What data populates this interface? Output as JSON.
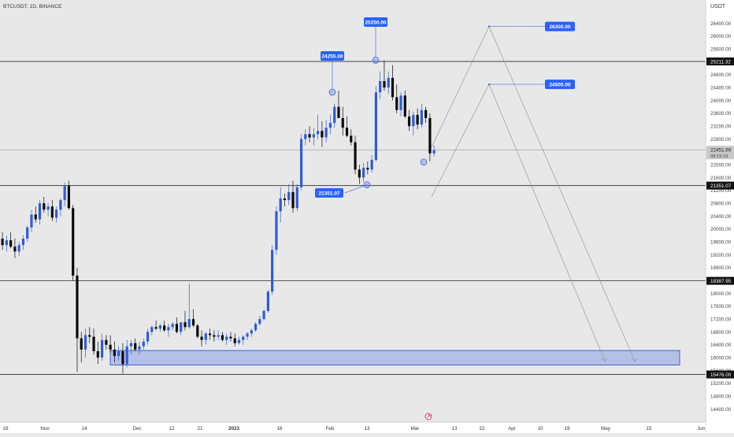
{
  "header": {
    "symbol_line": "BTCUSDT, 1D, BINANCE"
  },
  "axis": {
    "currency": "USDT"
  },
  "colors": {
    "background": "#e8e8e8",
    "axis_background": "#ffffff",
    "bull": "#2f5bd8",
    "bear": "#0a0a0a",
    "label_bg": "#2962ff",
    "line": "#2a2a2a",
    "zone_fill": "#a9b8e6",
    "zone_stroke": "#3f63cf",
    "projection": "#9a9a9a",
    "marker": "#4a6fe0"
  },
  "chart_data": {
    "type": "candlestick",
    "title": "BTCUSDT, 1D, BINANCE",
    "y_unit": "USDT",
    "ylim": [
      14000,
      27000
    ],
    "y_ticks": [
      14400,
      14800,
      15200,
      15600,
      16000,
      16400,
      16800,
      17200,
      17600,
      18000,
      18400,
      18800,
      19200,
      19600,
      20000,
      20400,
      20800,
      21200,
      21600,
      22000,
      22400,
      22800,
      23200,
      23600,
      24000,
      24400,
      24800,
      25200,
      25600,
      26000,
      26400
    ],
    "x_ticks": [
      "19",
      "Nov",
      "14",
      "Dec",
      "12",
      "21",
      "2023",
      "16",
      "Feb",
      "13",
      "Mar",
      "13",
      "22",
      "Apr",
      "10",
      "19",
      "May",
      "15",
      "Jun"
    ],
    "price_badges": [
      {
        "value": "25211.32",
        "style": "dark"
      },
      {
        "value": "22451.69",
        "sub": "08:19:16",
        "style": "current"
      },
      {
        "value": "21351.07",
        "style": "dark"
      },
      {
        "value": "18387.95",
        "style": "dark"
      },
      {
        "value": "15476.00",
        "style": "dark"
      }
    ],
    "horizontal_levels": [
      25211.32,
      21351.07,
      18387.95,
      15476.0
    ],
    "current_price": 22451.69,
    "demand_zone": {
      "low": 15770,
      "high": 16220
    },
    "labels": [
      "24255.00",
      "25250.00",
      "21351.07",
      "26300.00",
      "24500.00"
    ],
    "candles": [
      [
        19700,
        19900,
        19350,
        19500
      ],
      [
        19500,
        19800,
        19300,
        19650
      ],
      [
        19650,
        19900,
        19400,
        19450
      ],
      [
        19450,
        19700,
        19100,
        19300
      ],
      [
        19300,
        19600,
        19150,
        19500
      ],
      [
        19500,
        19800,
        19350,
        19700
      ],
      [
        19700,
        20100,
        19600,
        20050
      ],
      [
        20050,
        20600,
        19900,
        20450
      ],
      [
        20450,
        20700,
        20200,
        20300
      ],
      [
        20300,
        20900,
        20150,
        20800
      ],
      [
        20800,
        21000,
        20500,
        20600
      ],
      [
        20600,
        20800,
        20400,
        20700
      ],
      [
        20700,
        20900,
        20250,
        20350
      ],
      [
        20350,
        20700,
        20200,
        20600
      ],
      [
        20600,
        20950,
        20400,
        20900
      ],
      [
        20900,
        21450,
        20700,
        21350
      ],
      [
        21350,
        21500,
        20600,
        20650
      ],
      [
        20650,
        20750,
        18400,
        18550
      ],
      [
        18550,
        18800,
        15550,
        16600
      ],
      [
        16600,
        16800,
        15850,
        16250
      ],
      [
        16250,
        16900,
        16000,
        16700
      ],
      [
        16700,
        16950,
        16450,
        16650
      ],
      [
        16650,
        16900,
        16100,
        16200
      ],
      [
        16200,
        16500,
        15800,
        16000
      ],
      [
        16000,
        16750,
        15900,
        16550
      ],
      [
        16550,
        16700,
        16250,
        16400
      ],
      [
        16400,
        16700,
        16150,
        16250
      ],
      [
        16250,
        16500,
        15850,
        16050
      ],
      [
        16050,
        16350,
        15900,
        16200
      ],
      [
        16200,
        16450,
        15500,
        15800
      ],
      [
        15800,
        16550,
        15700,
        16350
      ],
      [
        16350,
        16550,
        16100,
        16450
      ],
      [
        16450,
        16600,
        16200,
        16250
      ],
      [
        16250,
        16500,
        16100,
        16350
      ],
      [
        16350,
        16600,
        16250,
        16500
      ],
      [
        16500,
        16900,
        16400,
        16800
      ],
      [
        16800,
        17000,
        16700,
        16950
      ],
      [
        16950,
        17150,
        16850,
        16900
      ],
      [
        16900,
        17050,
        16800,
        17000
      ],
      [
        17000,
        17150,
        16800,
        16850
      ],
      [
        16850,
        17050,
        16650,
        16950
      ],
      [
        16950,
        17100,
        16850,
        17050
      ],
      [
        17050,
        17250,
        16750,
        16800
      ],
      [
        16800,
        17100,
        16700,
        17100
      ],
      [
        17100,
        17450,
        16850,
        16950
      ],
      [
        16950,
        18300,
        16900,
        17200
      ],
      [
        17200,
        17500,
        16950,
        17000
      ],
      [
        17000,
        17050,
        16600,
        16650
      ],
      [
        16650,
        16850,
        16350,
        16550
      ],
      [
        16550,
        16800,
        16400,
        16750
      ],
      [
        16750,
        16900,
        16550,
        16700
      ],
      [
        16700,
        16850,
        16500,
        16650
      ],
      [
        16650,
        16850,
        16550,
        16700
      ],
      [
        16700,
        16800,
        16500,
        16550
      ],
      [
        16550,
        16750,
        16400,
        16650
      ],
      [
        16650,
        16800,
        16500,
        16600
      ],
      [
        16600,
        16750,
        16350,
        16450
      ],
      [
        16450,
        16650,
        16400,
        16550
      ],
      [
        16550,
        16700,
        16400,
        16650
      ],
      [
        16650,
        16800,
        16550,
        16750
      ],
      [
        16750,
        16900,
        16650,
        16850
      ],
      [
        16850,
        17100,
        16800,
        17050
      ],
      [
        17050,
        17300,
        17000,
        17200
      ],
      [
        17200,
        17500,
        17150,
        17450
      ],
      [
        17450,
        18100,
        17400,
        18050
      ],
      [
        18050,
        19500,
        17950,
        19350
      ],
      [
        19350,
        20700,
        19200,
        20550
      ],
      [
        20550,
        21300,
        20200,
        20950
      ],
      [
        20950,
        21100,
        20700,
        20900
      ],
      [
        20900,
        21400,
        20750,
        21150
      ],
      [
        21150,
        21500,
        20500,
        20650
      ],
      [
        20650,
        21400,
        20550,
        21300
      ],
      [
        21300,
        22950,
        21200,
        22800
      ],
      [
        22800,
        23100,
        22600,
        22950
      ],
      [
        22950,
        23200,
        22700,
        22850
      ],
      [
        22850,
        23150,
        22600,
        22950
      ],
      [
        22950,
        23550,
        22800,
        23050
      ],
      [
        23050,
        23350,
        22550,
        22850
      ],
      [
        22850,
        23400,
        22700,
        23150
      ],
      [
        23150,
        23550,
        22950,
        23300
      ],
      [
        23300,
        23900,
        23150,
        23800
      ],
      [
        23800,
        24300,
        23500,
        23450
      ],
      [
        23450,
        23800,
        22900,
        23150
      ],
      [
        23150,
        23500,
        22850,
        22900
      ],
      [
        22900,
        23100,
        22600,
        22700
      ],
      [
        22700,
        22900,
        21700,
        21850
      ],
      [
        21850,
        22000,
        21400,
        21600
      ],
      [
        21600,
        22050,
        21450,
        21900
      ],
      [
        21900,
        22100,
        21700,
        21850
      ],
      [
        21850,
        22300,
        21750,
        22150
      ],
      [
        22150,
        24450,
        22100,
        24250
      ],
      [
        24250,
        24900,
        24050,
        24600
      ],
      [
        24600,
        25250,
        24300,
        24400
      ],
      [
        24400,
        24900,
        24200,
        24700
      ],
      [
        24700,
        25100,
        24000,
        24100
      ],
      [
        24100,
        24500,
        23600,
        23700
      ],
      [
        23700,
        24250,
        23500,
        24150
      ],
      [
        24150,
        24300,
        23450,
        23500
      ],
      [
        23500,
        23700,
        23050,
        23200
      ],
      [
        23200,
        23650,
        22900,
        23550
      ],
      [
        23550,
        23750,
        23100,
        23250
      ],
      [
        23250,
        23900,
        23150,
        23700
      ],
      [
        23700,
        23800,
        23300,
        23450
      ],
      [
        23450,
        23600,
        22100,
        22350
      ],
      [
        22350,
        22600,
        22250,
        22450
      ]
    ]
  }
}
